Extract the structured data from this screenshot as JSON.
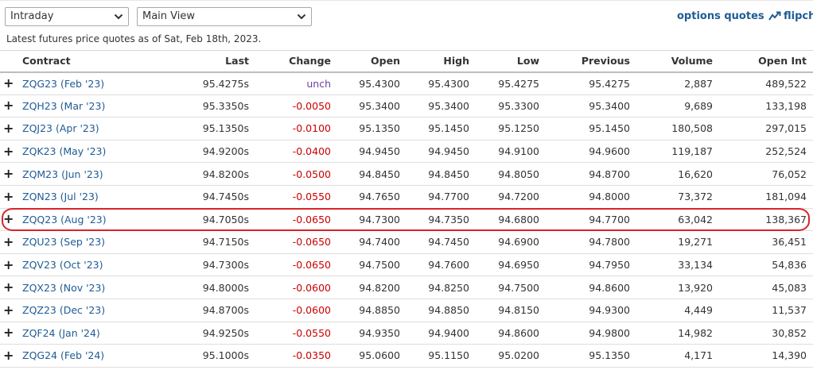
{
  "controls": {
    "period": "Intraday",
    "view": "Main View",
    "options_link": "options quotes",
    "flip_link": "flipch"
  },
  "as_of": "Latest futures price quotes as of Sat, Feb 18th, 2023.",
  "columns": [
    "Contract",
    "Last",
    "Change",
    "Open",
    "High",
    "Low",
    "Previous",
    "Volume",
    "Open Int"
  ],
  "rows": [
    {
      "contract": "ZQG23 (Feb '23)",
      "last": "95.4275s",
      "change": "unch",
      "open": "95.4300",
      "high": "95.4300",
      "low": "95.4275",
      "previous": "95.4275",
      "volume": "2,887",
      "open_int": "489,522"
    },
    {
      "contract": "ZQH23 (Mar '23)",
      "last": "95.3350s",
      "change": "-0.0050",
      "open": "95.3400",
      "high": "95.3400",
      "low": "95.3300",
      "previous": "95.3400",
      "volume": "9,689",
      "open_int": "133,198"
    },
    {
      "contract": "ZQJ23 (Apr '23)",
      "last": "95.1350s",
      "change": "-0.0100",
      "open": "95.1350",
      "high": "95.1450",
      "low": "95.1250",
      "previous": "95.1450",
      "volume": "180,508",
      "open_int": "297,015"
    },
    {
      "contract": "ZQK23 (May '23)",
      "last": "94.9200s",
      "change": "-0.0400",
      "open": "94.9450",
      "high": "94.9450",
      "low": "94.9100",
      "previous": "94.9600",
      "volume": "119,187",
      "open_int": "252,524"
    },
    {
      "contract": "ZQM23 (Jun '23)",
      "last": "94.8200s",
      "change": "-0.0500",
      "open": "94.8450",
      "high": "94.8450",
      "low": "94.8050",
      "previous": "94.8700",
      "volume": "16,620",
      "open_int": "76,052"
    },
    {
      "contract": "ZQN23 (Jul '23)",
      "last": "94.7450s",
      "change": "-0.0550",
      "open": "94.7650",
      "high": "94.7700",
      "low": "94.7200",
      "previous": "94.8000",
      "volume": "73,372",
      "open_int": "181,094"
    },
    {
      "contract": "ZQQ23 (Aug '23)",
      "last": "94.7050s",
      "change": "-0.0650",
      "open": "94.7300",
      "high": "94.7350",
      "low": "94.6800",
      "previous": "94.7700",
      "volume": "63,042",
      "open_int": "138,367"
    },
    {
      "contract": "ZQU23 (Sep '23)",
      "last": "94.7150s",
      "change": "-0.0650",
      "open": "94.7400",
      "high": "94.7450",
      "low": "94.6900",
      "previous": "94.7800",
      "volume": "19,271",
      "open_int": "36,451"
    },
    {
      "contract": "ZQV23 (Oct '23)",
      "last": "94.7300s",
      "change": "-0.0650",
      "open": "94.7500",
      "high": "94.7600",
      "low": "94.6950",
      "previous": "94.7950",
      "volume": "33,134",
      "open_int": "54,836"
    },
    {
      "contract": "ZQX23 (Nov '23)",
      "last": "94.8000s",
      "change": "-0.0600",
      "open": "94.8200",
      "high": "94.8250",
      "low": "94.7500",
      "previous": "94.8600",
      "volume": "13,920",
      "open_int": "45,083"
    },
    {
      "contract": "ZQZ23 (Dec '23)",
      "last": "94.8700s",
      "change": "-0.0600",
      "open": "94.8850",
      "high": "94.8850",
      "low": "94.8150",
      "previous": "94.9300",
      "volume": "4,449",
      "open_int": "11,537"
    },
    {
      "contract": "ZQF24 (Jan '24)",
      "last": "94.9250s",
      "change": "-0.0550",
      "open": "94.9350",
      "high": "94.9400",
      "low": "94.8600",
      "previous": "94.9800",
      "volume": "14,982",
      "open_int": "30,852"
    },
    {
      "contract": "ZQG24 (Feb '24)",
      "last": "95.1000s",
      "change": "-0.0350",
      "open": "95.0600",
      "high": "95.1150",
      "low": "95.0200",
      "previous": "95.1350",
      "volume": "4,171",
      "open_int": "14,390"
    }
  ],
  "highlighted_row": 6,
  "colors": {
    "link": "#1f5b94",
    "negative": "#cc0000",
    "unchanged": "#6b3fa0",
    "highlight": "#d9232a"
  },
  "icons": {
    "dropdown": "chevron-down-icon",
    "expand": "plus-icon",
    "flipcharts": "trend-chart-icon"
  }
}
